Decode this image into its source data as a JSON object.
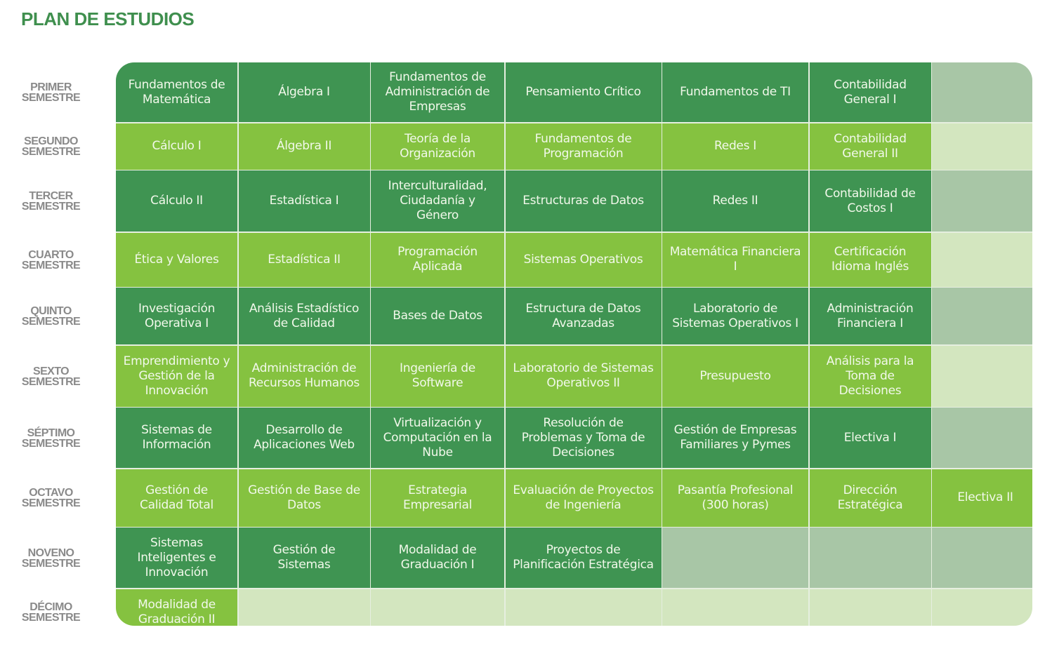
{
  "title": "PLAN DE ESTUDIOS",
  "colors": {
    "dark": "#3f9452",
    "light": "#85c240",
    "dark_empty": "#a8c6a6",
    "light_empty": "#d3e6bf",
    "title": "#3f8f4e"
  },
  "rows": [
    {
      "semester": [
        "PRIMER",
        "SEMESTRE"
      ],
      "courses": [
        "Fundamentos de Matemática",
        "Álgebra I",
        "Fundamentos de Administración de Empresas",
        "Pensamiento Crítico",
        "Fundamentos de TI",
        "Contabilidad General I",
        ""
      ]
    },
    {
      "semester": [
        "SEGUNDO",
        "SEMESTRE"
      ],
      "courses": [
        "Cálculo  I",
        "Álgebra II",
        "Teoría de la Organización",
        "Fundamentos de Programación",
        "Redes I",
        "Contabilidad General II",
        ""
      ]
    },
    {
      "semester": [
        "TERCER",
        "SEMESTRE"
      ],
      "courses": [
        "Cálculo  II",
        "Estadística I",
        "Interculturalidad, Ciudadanía y Género",
        "Estructuras de Datos",
        "Redes II",
        "Contabilidad de Costos I",
        ""
      ]
    },
    {
      "semester": [
        "CUARTO",
        "SEMESTRE"
      ],
      "courses": [
        "Ética y Valores",
        "Estadística II",
        "Programación Aplicada",
        "Sistemas Operativos",
        "Matemática Financiera I",
        "Certificación Idioma Inglés",
        ""
      ]
    },
    {
      "semester": [
        "QUINTO",
        "SEMESTRE"
      ],
      "courses": [
        "Investigación Operativa I",
        "Análisis Estadístico de Calidad",
        "Bases de Datos",
        "Estructura de  Datos Avanzadas",
        "Laboratorio de Sistemas Operativos I",
        "Administración Financiera I",
        ""
      ]
    },
    {
      "semester": [
        "SEXTO",
        "SEMESTRE"
      ],
      "courses": [
        "Emprendimiento y Gestión de la Innovación",
        "Administración de Recursos Humanos",
        "Ingeniería de Software",
        "Laboratorio de Sistemas Operativos II",
        "Presupuesto",
        "Análisis para la Toma de Decisiones",
        ""
      ]
    },
    {
      "semester": [
        "SÉPTIMO",
        "SEMESTRE"
      ],
      "courses": [
        "Sistemas de Información",
        "Desarrollo de Aplicaciones Web",
        "Virtualización y Computación en la Nube",
        "Resolución de Problemas y Toma de Decisiones",
        "Gestión de Empresas Familiares y Pymes",
        "Electiva I",
        ""
      ]
    },
    {
      "semester": [
        "OCTAVO",
        "SEMESTRE"
      ],
      "courses": [
        "Gestión de Calidad Total",
        "Gestión de Base de Datos",
        "Estrategia Empresarial",
        "Evaluación de Proyectos de Ingeniería",
        "Pasantía Profesional (300 horas)",
        "Dirección Estratégica",
        "Electiva II"
      ]
    },
    {
      "semester": [
        "NOVENO",
        "SEMESTRE"
      ],
      "courses": [
        "Sistemas Inteligentes e Innovación",
        "Gestión de Sistemas",
        "Modalidad de Graduación I",
        "Proyectos de Planificación Estratégica",
        "",
        "",
        ""
      ]
    },
    {
      "semester": [
        "DÉCIMO",
        "SEMESTRE"
      ],
      "courses": [
        "Modalidad de Graduación II",
        "",
        "",
        "",
        "",
        "",
        ""
      ]
    }
  ]
}
